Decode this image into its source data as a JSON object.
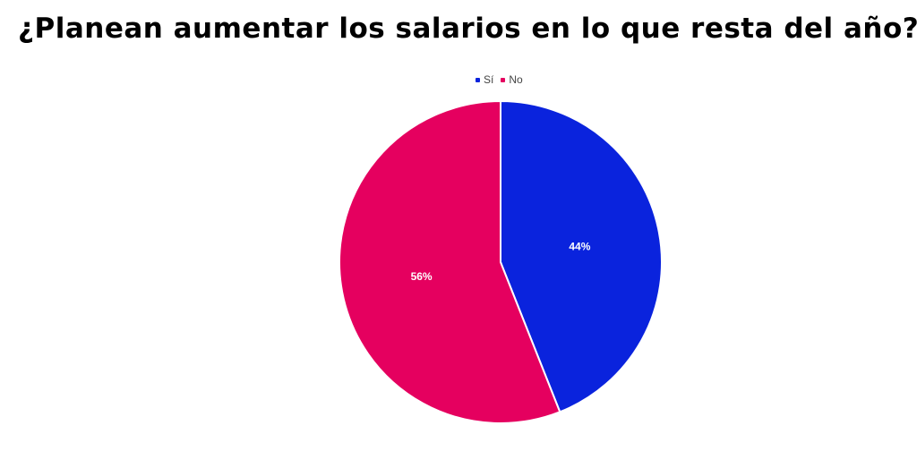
{
  "chart_data": {
    "type": "pie",
    "title": "¿Planean aumentar los salarios en lo que resta del año?",
    "legend_position": "top",
    "slices": [
      {
        "name": "Sí",
        "value": 44,
        "label": "44%",
        "color": "#0A23DD"
      },
      {
        "name": "No",
        "value": 56,
        "label": "56%",
        "color": "#E5005F"
      }
    ]
  }
}
